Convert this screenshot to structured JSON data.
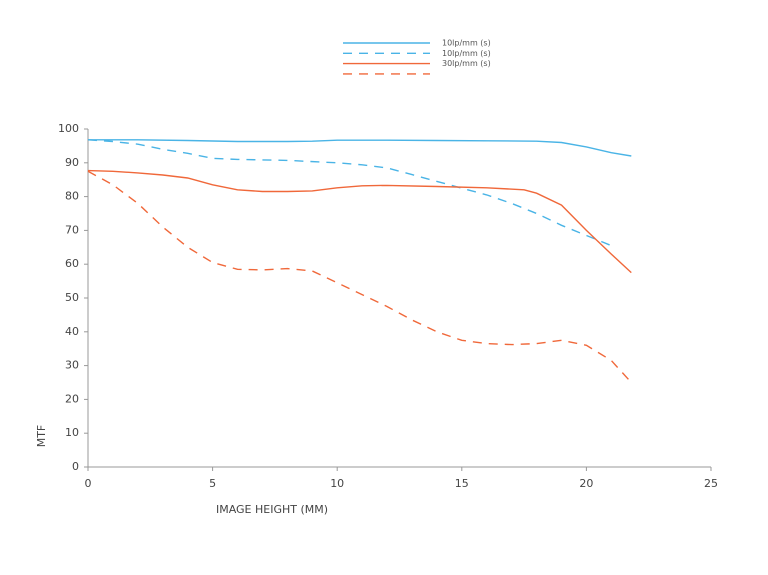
{
  "chart_data": {
    "type": "line",
    "xlabel": "IMAGE HEIGHT (MM)",
    "ylabel": "MTF",
    "xlim": [
      0,
      25
    ],
    "xticks": [
      0,
      5,
      10,
      15,
      20,
      25
    ],
    "ylim": [
      0,
      100
    ],
    "yticks": [
      0,
      10,
      20,
      30,
      40,
      50,
      60,
      70,
      80,
      90,
      100
    ],
    "grid": false,
    "series": [
      {
        "name": "10lp/mm (s)",
        "color": "#4ab4e6",
        "dash": false,
        "x": [
          0,
          1,
          2,
          4,
          6,
          8,
          9,
          10,
          12,
          14,
          16,
          18,
          19,
          20,
          21,
          21.8
        ],
        "values": [
          96.8,
          96.8,
          96.8,
          96.6,
          96.3,
          96.3,
          96.4,
          96.7,
          96.7,
          96.6,
          96.5,
          96.4,
          96.0,
          94.7,
          93.0,
          92.0
        ]
      },
      {
        "name": "10lp/mm (s)",
        "color": "#4ab4e6",
        "dash": true,
        "x": [
          0,
          1,
          2,
          3,
          4,
          5,
          6,
          8,
          10,
          11,
          12,
          13,
          14,
          15,
          16,
          17,
          18,
          19,
          20,
          21
        ],
        "values": [
          96.8,
          96.3,
          95.5,
          94,
          92.8,
          91.3,
          91,
          90.7,
          90,
          89.4,
          88.5,
          86.5,
          84.5,
          82.5,
          80.5,
          78,
          75,
          71.5,
          68.5,
          65.5
        ]
      },
      {
        "name": "30lp/mm (s)",
        "color": "#f0683a",
        "dash": false,
        "x": [
          0,
          1,
          2,
          3,
          4,
          5,
          6,
          7,
          8,
          9,
          10,
          11,
          12,
          14,
          16,
          17.5,
          18,
          19,
          20,
          21,
          21.8
        ],
        "values": [
          87.7,
          87.5,
          87,
          86.4,
          85.5,
          83.5,
          82,
          81.5,
          81.5,
          81.7,
          82.6,
          83.2,
          83.3,
          83,
          82.6,
          82,
          81,
          77.5,
          70,
          63,
          57.5
        ]
      },
      {
        "color": "#f0683a",
        "dash": true,
        "x": [
          0,
          1,
          2,
          3,
          4,
          5,
          6,
          7,
          8,
          9,
          10,
          11,
          12,
          13,
          14,
          15,
          16,
          17,
          18,
          19,
          20,
          21,
          21.8
        ],
        "values": [
          87.5,
          83.5,
          78,
          71,
          65,
          60.5,
          58.5,
          58.3,
          58.7,
          58,
          54.5,
          51,
          47.5,
          43.5,
          40,
          37.5,
          36.5,
          36.2,
          36.5,
          37.5,
          36,
          31.5,
          25
        ]
      }
    ]
  }
}
